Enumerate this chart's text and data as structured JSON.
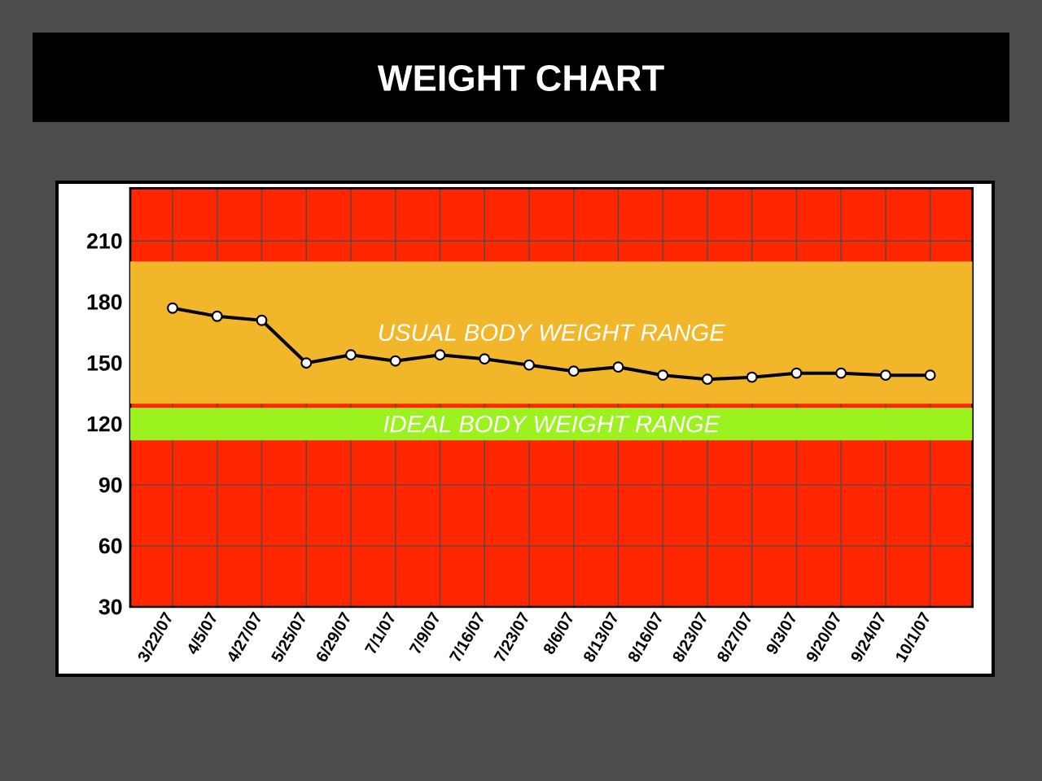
{
  "chart_data": {
    "type": "line",
    "title": "WEIGHT CHART",
    "categories": [
      "3/22/07",
      "4/5/07",
      "4/27/07",
      "5/25/07",
      "6/29/07",
      "7/1/07",
      "7/9/07",
      "7/16/07",
      "7/23/07",
      "8/6/07",
      "8/13/07",
      "8/16/07",
      "8/23/07",
      "8/27/07",
      "9/3/07",
      "9/20/07",
      "9/24/07",
      "10/1/07"
    ],
    "series": [
      {
        "color": "#000000",
        "values": [
          177,
          173,
          171,
          150,
          154,
          151,
          154,
          152,
          149,
          146,
          148,
          144,
          142,
          143,
          145,
          145,
          144,
          144
        ]
      }
    ],
    "ylim": [
      30,
      236
    ],
    "yticks": [
      30,
      60,
      90,
      120,
      150,
      180,
      210
    ],
    "grid": true,
    "marker": "circle",
    "line_style": "solid",
    "bands": [
      {
        "axis": "y",
        "from": 130,
        "to": 200,
        "label": "USUAL BODY WEIGHT RANGE",
        "color": "#f2b62a"
      },
      {
        "axis": "y",
        "from": 112,
        "to": 128,
        "label": "IDEAL BODY WEIGHT RANGE",
        "color": "#9cf21e"
      }
    ]
  }
}
